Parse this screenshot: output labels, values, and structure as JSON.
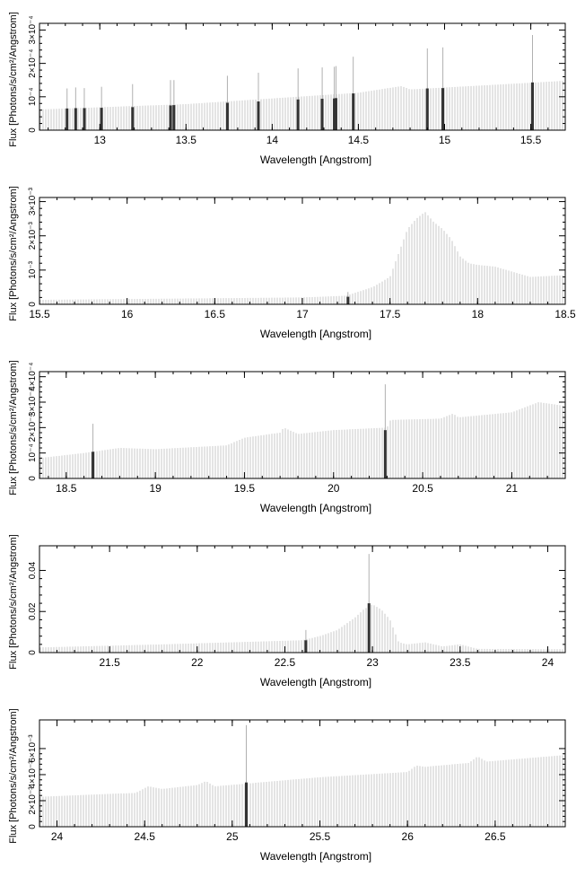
{
  "chart_data": [
    {
      "type": "bar",
      "xlabel": "Wavelength [Angstrom]",
      "ylabel": "Flux [Photons/s/cm²/Angstrom]",
      "xlim": [
        12.65,
        15.7
      ],
      "ylim": [
        0,
        0.00032
      ],
      "xticks": [
        {
          "v": 13,
          "label": "13"
        },
        {
          "v": 13.5,
          "label": "13.5"
        },
        {
          "v": 14,
          "label": "14"
        },
        {
          "v": 14.5,
          "label": "14.5"
        },
        {
          "v": 15,
          "label": "15"
        },
        {
          "v": 15.5,
          "label": "15.5"
        }
      ],
      "yticks": [
        {
          "v": 0,
          "label": "0"
        },
        {
          "v": 0.0001,
          "label": "10⁻⁴"
        },
        {
          "v": 0.0002,
          "label": "2×10⁻⁴"
        },
        {
          "v": 0.0003,
          "label": "3×10⁻⁴"
        }
      ],
      "continuum": [
        [
          12.65,
          6.2e-05
        ],
        [
          13.5,
          7.8e-05
        ],
        [
          14.5,
          0.000112
        ],
        [
          14.75,
          0.000132
        ],
        [
          14.8,
          0.000122
        ],
        [
          15.5,
          0.000142
        ],
        [
          15.7,
          0.000148
        ]
      ],
      "lines": [
        {
          "x": 12.81,
          "y": 6.5e-05,
          "top": 0.000125
        },
        {
          "x": 12.86,
          "y": 6.6e-05,
          "top": 0.000128
        },
        {
          "x": 12.91,
          "y": 6.6e-05,
          "top": 0.000126
        },
        {
          "x": 13.01,
          "y": 6.7e-05,
          "top": 0.00013
        },
        {
          "x": 13.19,
          "y": 6.9e-05,
          "top": 0.000138
        },
        {
          "x": 13.41,
          "y": 7.4e-05,
          "top": 0.00015
        },
        {
          "x": 13.43,
          "y": 7.5e-05,
          "top": 0.00015
        },
        {
          "x": 13.74,
          "y": 8.2e-05,
          "top": 0.000163
        },
        {
          "x": 13.92,
          "y": 8.6e-05,
          "top": 0.000172
        },
        {
          "x": 14.15,
          "y": 9.2e-05,
          "top": 0.000185
        },
        {
          "x": 14.29,
          "y": 9.4e-05,
          "top": 0.000188
        },
        {
          "x": 14.36,
          "y": 9.5e-05,
          "top": 0.00019
        },
        {
          "x": 14.37,
          "y": 9.6e-05,
          "top": 0.000192
        },
        {
          "x": 14.47,
          "y": 0.00011,
          "top": 0.00022
        },
        {
          "x": 14.9,
          "y": 0.000125,
          "top": 0.000245
        },
        {
          "x": 14.99,
          "y": 0.000126,
          "top": 0.000248
        },
        {
          "x": 15.51,
          "y": 0.000143,
          "top": 0.000285
        }
      ]
    },
    {
      "type": "bar",
      "xlabel": "Wavelength [Angstrom]",
      "ylabel": "Flux [Photons/s/cm²/Angstrom]",
      "xlim": [
        15.5,
        18.5
      ],
      "ylim": [
        0,
        0.00312
      ],
      "xticks": [
        {
          "v": 15.5,
          "label": "15.5"
        },
        {
          "v": 16,
          "label": "16"
        },
        {
          "v": 16.5,
          "label": "16.5"
        },
        {
          "v": 17,
          "label": "17"
        },
        {
          "v": 17.5,
          "label": "17.5"
        },
        {
          "v": 18,
          "label": "18"
        },
        {
          "v": 18.5,
          "label": "18.5"
        }
      ],
      "yticks": [
        {
          "v": 0,
          "label": "0"
        },
        {
          "v": 0.001,
          "label": "10⁻³"
        },
        {
          "v": 0.002,
          "label": "2×10⁻³"
        },
        {
          "v": 0.003,
          "label": "3×10⁻³"
        }
      ],
      "continuum": [
        [
          15.5,
          0.00013
        ],
        [
          17.0,
          0.0002
        ],
        [
          17.25,
          0.00025
        ],
        [
          17.4,
          0.0005
        ],
        [
          17.5,
          0.0008
        ],
        [
          17.6,
          0.0022
        ],
        [
          17.65,
          0.0025
        ],
        [
          17.7,
          0.0027
        ],
        [
          17.75,
          0.0024
        ],
        [
          17.8,
          0.0022
        ],
        [
          17.85,
          0.0019
        ],
        [
          17.9,
          0.0014
        ],
        [
          17.95,
          0.0012
        ],
        [
          18.0,
          0.00115
        ],
        [
          18.1,
          0.0011
        ],
        [
          18.2,
          0.00095
        ],
        [
          18.3,
          0.0008
        ],
        [
          18.5,
          0.00085
        ]
      ],
      "lines": [
        {
          "x": 17.26,
          "y": 0.00022,
          "top": 0.00036
        }
      ]
    },
    {
      "type": "bar",
      "xlabel": "Wavelength [Angstrom]",
      "ylabel": "Flux [Photons/s/cm²/Angstrom]",
      "xlim": [
        18.35,
        21.3
      ],
      "ylim": [
        0,
        0.00042
      ],
      "xticks": [
        {
          "v": 18.5,
          "label": "18.5"
        },
        {
          "v": 19,
          "label": "19"
        },
        {
          "v": 19.5,
          "label": "19.5"
        },
        {
          "v": 20,
          "label": "20"
        },
        {
          "v": 20.5,
          "label": "20.5"
        },
        {
          "v": 21,
          "label": "21"
        }
      ],
      "yticks": [
        {
          "v": 0,
          "label": "0"
        },
        {
          "v": 0.0001,
          "label": "10⁻⁴"
        },
        {
          "v": 0.0002,
          "label": "2×10⁻⁴"
        },
        {
          "v": 0.0003,
          "label": "3×10⁻⁴"
        },
        {
          "v": 0.0004,
          "label": "4×10⁻⁴"
        }
      ],
      "continuum": [
        [
          18.35,
          8e-05
        ],
        [
          18.6,
          0.0001
        ],
        [
          18.8,
          0.00012
        ],
        [
          19.0,
          0.000115
        ],
        [
          19.4,
          0.00013
        ],
        [
          19.5,
          0.00016
        ],
        [
          19.7,
          0.00018
        ],
        [
          19.72,
          0.0002
        ],
        [
          19.8,
          0.000175
        ],
        [
          20.0,
          0.00019
        ],
        [
          20.3,
          0.0002
        ],
        [
          20.32,
          0.00023
        ],
        [
          20.6,
          0.000235
        ],
        [
          20.67,
          0.000255
        ],
        [
          20.7,
          0.00024
        ],
        [
          21.0,
          0.00026
        ],
        [
          21.15,
          0.0003
        ],
        [
          21.3,
          0.000285
        ]
      ],
      "lines": [
        {
          "x": 18.65,
          "y": 0.000105,
          "top": 0.000215
        },
        {
          "x": 20.29,
          "y": 0.00019,
          "top": 0.00037
        }
      ]
    },
    {
      "type": "bar",
      "xlabel": "Wavelength [Angstrom]",
      "ylabel": "Flux [Photons/s/cm²/Angstrom]",
      "xlim": [
        21.1,
        24.1
      ],
      "ylim": [
        0,
        0.052
      ],
      "xticks": [
        {
          "v": 21.5,
          "label": "21.5"
        },
        {
          "v": 22,
          "label": "22"
        },
        {
          "v": 22.5,
          "label": "22.5"
        },
        {
          "v": 23,
          "label": "23"
        },
        {
          "v": 23.5,
          "label": "23.5"
        },
        {
          "v": 24,
          "label": "24"
        }
      ],
      "yticks": [
        {
          "v": 0,
          "label": "0"
        },
        {
          "v": 0.02,
          "label": "0.02"
        },
        {
          "v": 0.04,
          "label": "0.04"
        }
      ],
      "continuum": [
        [
          21.1,
          0.0025
        ],
        [
          21.8,
          0.004
        ],
        [
          22.2,
          0.005
        ],
        [
          22.6,
          0.006
        ],
        [
          22.7,
          0.008
        ],
        [
          22.8,
          0.011
        ],
        [
          22.9,
          0.017
        ],
        [
          22.95,
          0.021
        ],
        [
          23.0,
          0.0235
        ],
        [
          23.05,
          0.021
        ],
        [
          23.1,
          0.016
        ],
        [
          23.15,
          0.005
        ],
        [
          23.2,
          0.004
        ],
        [
          23.3,
          0.005
        ],
        [
          23.4,
          0.003
        ],
        [
          23.5,
          0.004
        ],
        [
          23.6,
          0.0018
        ],
        [
          24.1,
          0.0016
        ]
      ],
      "lines": [
        {
          "x": 22.62,
          "y": 0.006,
          "top": 0.011
        },
        {
          "x": 22.98,
          "y": 0.024,
          "top": 0.048
        }
      ]
    },
    {
      "type": "bar",
      "xlabel": "Wavelength [Angstrom]",
      "ylabel": "Flux [Photons/s/cm²/Angstrom]",
      "xlim": [
        23.9,
        26.9
      ],
      "ylim": [
        0,
        0.0082
      ],
      "xticks": [
        {
          "v": 24,
          "label": "24"
        },
        {
          "v": 24.5,
          "label": "24.5"
        },
        {
          "v": 25,
          "label": "25"
        },
        {
          "v": 25.5,
          "label": "25.5"
        },
        {
          "v": 26,
          "label": "26"
        },
        {
          "v": 26.5,
          "label": "26.5"
        }
      ],
      "yticks": [
        {
          "v": 0,
          "label": "0"
        },
        {
          "v": 0.002,
          "label": "2×10⁻³"
        },
        {
          "v": 0.004,
          "label": "4×10⁻³"
        },
        {
          "v": 0.006,
          "label": "6×10⁻³"
        }
      ],
      "continuum": [
        [
          23.9,
          0.0023
        ],
        [
          24.45,
          0.0026
        ],
        [
          24.52,
          0.0031
        ],
        [
          24.6,
          0.0029
        ],
        [
          24.8,
          0.0032
        ],
        [
          24.85,
          0.0035
        ],
        [
          24.9,
          0.0031
        ],
        [
          25.5,
          0.0038
        ],
        [
          26.0,
          0.0042
        ],
        [
          26.05,
          0.0047
        ],
        [
          26.1,
          0.0046
        ],
        [
          26.35,
          0.0049
        ],
        [
          26.4,
          0.0054
        ],
        [
          26.45,
          0.005
        ],
        [
          26.9,
          0.0055
        ]
      ],
      "lines": [
        {
          "x": 25.08,
          "y": 0.0034,
          "top": 0.0078
        }
      ]
    }
  ]
}
